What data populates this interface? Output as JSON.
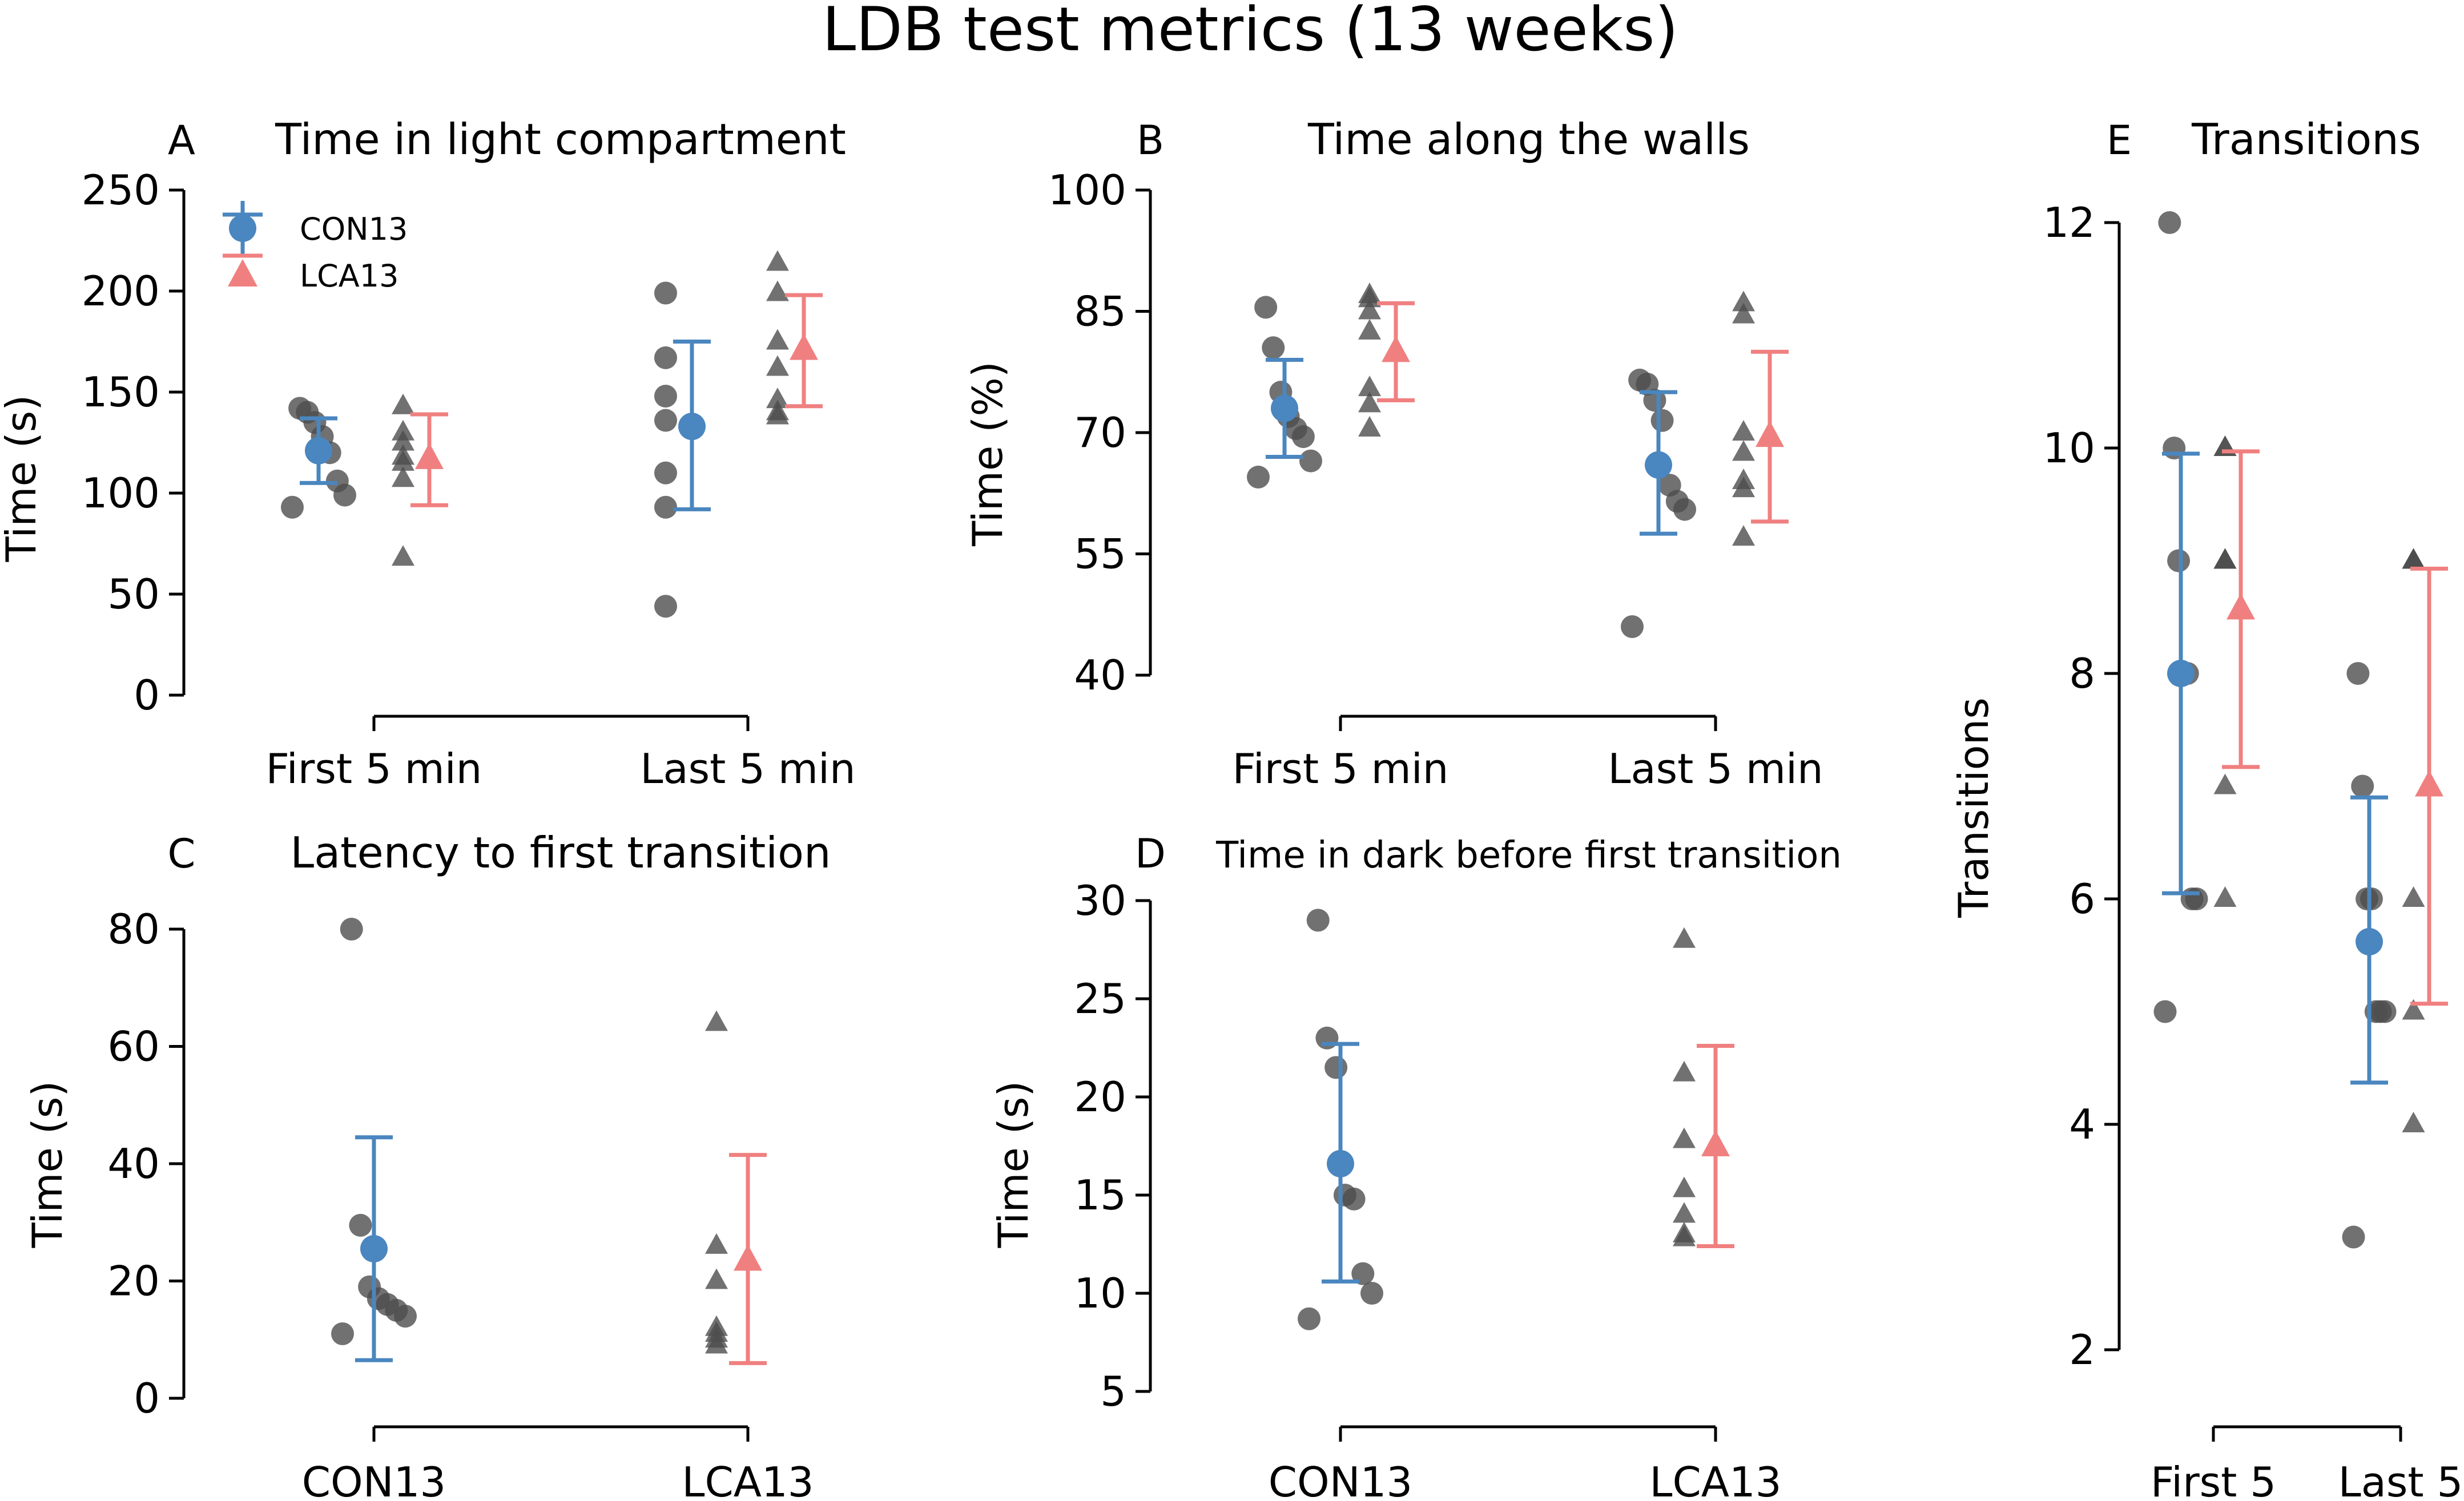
{
  "figure": {
    "title": "LDB test metrics (13 weeks)"
  },
  "legend": [
    {
      "label": "CON13",
      "color": "#4a86bf",
      "marker": "circle"
    },
    {
      "label": "LCA13",
      "color": "#f08080",
      "marker": "triangle"
    }
  ],
  "colors": {
    "con": "#4a86bf",
    "lca": "#f08080",
    "dots": "#4d4d4d"
  },
  "chart_data": [
    {
      "id": "A",
      "panel_label": "A",
      "type": "scatter",
      "title": "Time in light compartment",
      "ylabel": "Time (s)",
      "xlabel": "",
      "categories": [
        "First 5 min",
        "Last 5 min"
      ],
      "ylim": [
        0,
        250
      ],
      "yticks": [
        0,
        50,
        100,
        150,
        200,
        250
      ],
      "series": [
        {
          "name": "CON13",
          "groups": [
            {
              "points": [
                93,
                99,
                106,
                120,
                128,
                135,
                140,
                142
              ],
              "mean": 121,
              "error": [
                105,
                137
              ]
            },
            {
              "points": [
                44,
                93,
                110,
                136,
                148,
                167,
                199
              ],
              "mean": 133,
              "error": [
                92,
                175
              ]
            }
          ]
        },
        {
          "name": "LCA13",
          "groups": [
            {
              "points": [
                68,
                107,
                115,
                118,
                125,
                130,
                143
              ],
              "mean": 117,
              "error": [
                94,
                139
              ]
            },
            {
              "points": [
                138,
                140,
                146,
                162,
                175,
                199,
                214
              ],
              "mean": 171,
              "error": [
                143,
                198
              ]
            }
          ]
        }
      ]
    },
    {
      "id": "B",
      "panel_label": "B",
      "type": "scatter",
      "title": "Time along the walls",
      "ylabel": "Time (%)",
      "xlabel": "",
      "categories": [
        "First 5 min",
        "Last 5 min"
      ],
      "ylim": [
        40,
        100
      ],
      "yticks": [
        40,
        55,
        70,
        85,
        100
      ],
      "series": [
        {
          "name": "CON13",
          "groups": [
            {
              "points": [
                64.5,
                66.5,
                69.5,
                70.5,
                72,
                75,
                80.5,
                85.5
              ],
              "mean": 73,
              "error": [
                67,
                79
              ]
            },
            {
              "points": [
                46,
                60.5,
                61.5,
                63.5,
                71.5,
                74,
                76,
                76.5
              ],
              "mean": 66,
              "error": [
                57.5,
                75
              ]
            }
          ]
        },
        {
          "name": "LCA13",
          "groups": [
            {
              "points": [
                70.5,
                73.5,
                75.5,
                82.5,
                85,
                86.5,
                87
              ],
              "mean": 80,
              "error": [
                74,
                86
              ]
            },
            {
              "points": [
                57,
                63,
                64,
                67.5,
                70,
                84.5,
                86
              ],
              "mean": 69.5,
              "error": [
                59,
                80
              ]
            }
          ]
        }
      ]
    },
    {
      "id": "C",
      "panel_label": "C",
      "type": "scatter",
      "title": "Latency to first transition",
      "ylabel": "Time (s)",
      "xlabel": "",
      "categories": [
        "CON13",
        "LCA13"
      ],
      "ylim": [
        0,
        80
      ],
      "yticks": [
        0,
        20,
        40,
        60,
        80
      ],
      "series": [
        {
          "name": "CON13",
          "groups": [
            {
              "points": [
                11,
                14,
                15,
                16,
                17,
                19,
                29.5,
                80
              ],
              "mean": 25.5,
              "error": [
                6.5,
                44.5
              ]
            }
          ]
        },
        {
          "name": "LCA13",
          "groups": [
            {
              "points": [
                9,
                10,
                11,
                12,
                20,
                26,
                64
              ],
              "mean": 23.5,
              "error": [
                6,
                41.5
              ]
            }
          ]
        }
      ]
    },
    {
      "id": "D",
      "panel_label": "D",
      "type": "scatter",
      "title": "Time in dark before first transition",
      "ylabel": "Time (s)",
      "xlabel": "",
      "categories": [
        "CON13",
        "LCA13"
      ],
      "ylim": [
        5,
        30
      ],
      "yticks": [
        5,
        10,
        15,
        20,
        25,
        30
      ],
      "series": [
        {
          "name": "CON13",
          "groups": [
            {
              "points": [
                8.7,
                10,
                11,
                14.8,
                15,
                21.5,
                23,
                29
              ],
              "mean": 16.6,
              "error": [
                10.6,
                22.7
              ]
            }
          ]
        },
        {
          "name": "LCA13",
          "groups": [
            {
              "points": [
                12.8,
                13,
                14,
                15.3,
                17.8,
                21.2,
                28
              ],
              "mean": 17.5,
              "error": [
                12.4,
                22.6
              ]
            }
          ]
        }
      ]
    },
    {
      "id": "E",
      "panel_label": "E",
      "type": "scatter",
      "title": "Transitions",
      "ylabel": "Transitions",
      "xlabel": "",
      "categories": [
        "First 5",
        "Last 5"
      ],
      "ylim": [
        2,
        12
      ],
      "yticks": [
        2,
        4,
        6,
        8,
        10,
        12
      ],
      "series": [
        {
          "name": "CON13",
          "groups": [
            {
              "points": [
                5,
                6,
                6,
                8,
                8,
                9,
                10,
                12
              ],
              "mean": 8,
              "error": [
                6.05,
                9.95
              ]
            },
            {
              "points": [
                3,
                5,
                5,
                5,
                6,
                6,
                7,
                8
              ],
              "mean": 5.62,
              "error": [
                4.37,
                6.9
              ]
            }
          ]
        },
        {
          "name": "LCA13",
          "groups": [
            {
              "points": [
                6,
                7,
                9,
                9,
                9,
                10,
                10
              ],
              "mean": 8.57,
              "error": [
                7.17,
                9.97
              ]
            },
            {
              "points": [
                4,
                5,
                6,
                9,
                9,
                9,
                9
              ],
              "mean": 7,
              "error": [
                5.07,
                8.93
              ]
            }
          ]
        }
      ]
    }
  ]
}
